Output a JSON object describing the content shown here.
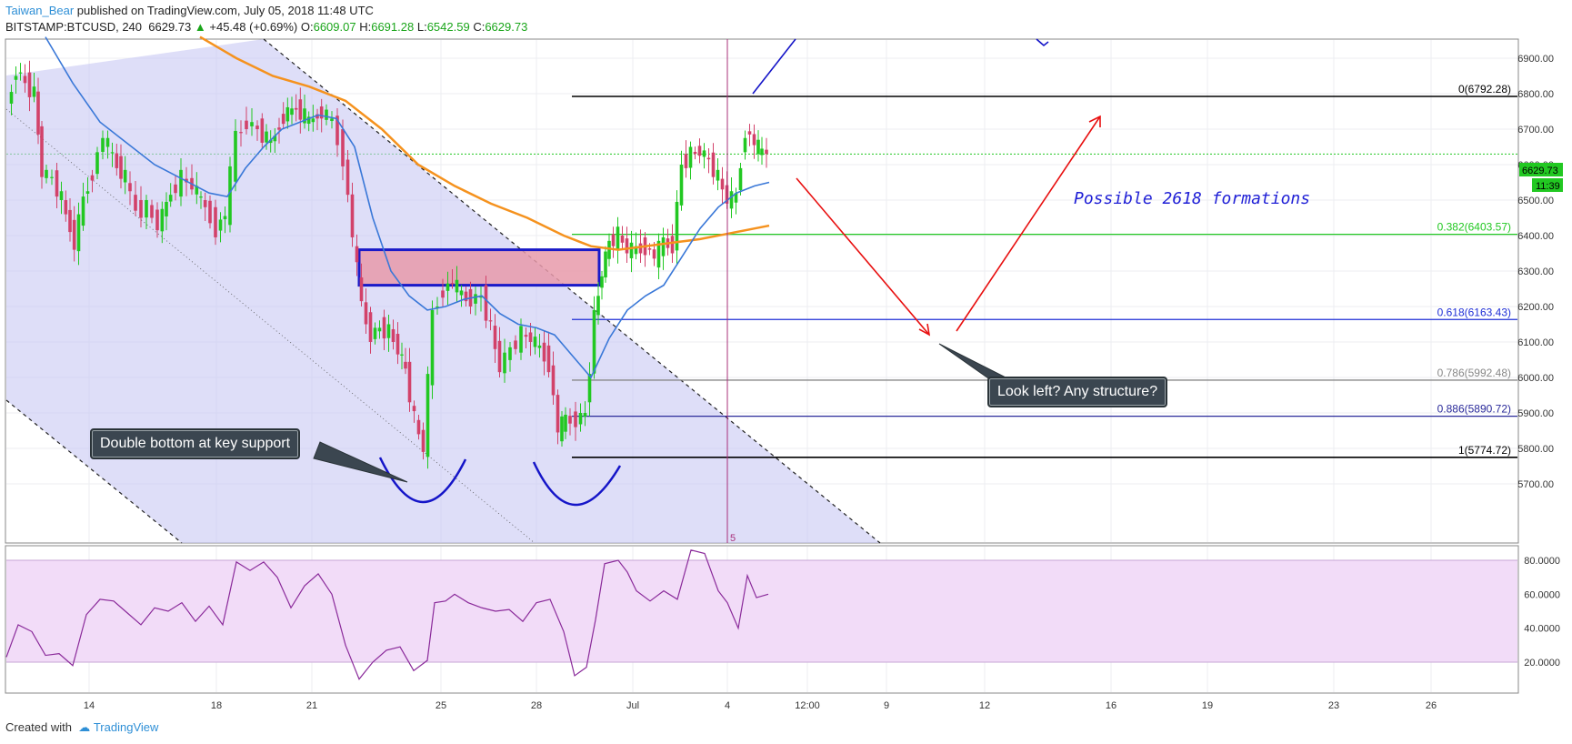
{
  "header": {
    "author": "Taiwan_Bear",
    "published": " published on TradingView.com, July 05, 2018 11:48 UTC",
    "symbol": "BITSTAMP:BTCUSD, 240",
    "last": "6629.73",
    "change": "+45.48 (+0.69%)",
    "o_label": "O:",
    "o": "6609.07",
    "h_label": "H:",
    "h": "6691.28",
    "l_label": "L:",
    "l": "6542.59",
    "c_label": "C:",
    "c": "6629.73"
  },
  "footer": {
    "created": "Created with",
    "brand": "TradingView"
  },
  "annotations": {
    "formations": "Possible 2618 formations",
    "double_bottom": "Double bottom at key support",
    "look_left": "Look left? Any structure?"
  },
  "chart_data": {
    "type": "candlestick",
    "timeframe": "240",
    "price_axis": {
      "range": [
        5680,
        6960
      ],
      "ticks": [
        "6900.00",
        "6800.00",
        "6700.00",
        "6600.00",
        "6500.00",
        "6400.00",
        "6300.00",
        "6200.00",
        "6100.00",
        "6000.00",
        "5900.00",
        "5800.00",
        "5700.00"
      ],
      "last_price_label": "6629.73",
      "countdown_label": "11:39"
    },
    "x_ticks": [
      "14",
      "18",
      "21",
      "25",
      "28",
      "Jul",
      "4",
      "12:00",
      "9",
      "12",
      "16",
      "19",
      "23",
      "26"
    ],
    "fib_levels": [
      {
        "ratio": "0",
        "price": 6792.28,
        "label": "0(6792.28)",
        "color": "#000000"
      },
      {
        "ratio": "0.382",
        "price": 6403.57,
        "label": "0.382(6403.57)",
        "color": "#22c822"
      },
      {
        "ratio": "0.618",
        "price": 6163.43,
        "label": "0.618(6163.43)",
        "color": "#1f2fd6"
      },
      {
        "ratio": "0.786",
        "price": 5992.48,
        "label": "0.786(5992.48)",
        "color": "#888888"
      },
      {
        "ratio": "0.886",
        "price": 5890.72,
        "label": "0.886(5890.72)",
        "color": "#2a2a9a"
      },
      {
        "ratio": "1",
        "price": 5774.72,
        "label": "1(5774.72)",
        "color": "#000000"
      }
    ],
    "resistance_zone": {
      "price_low": 6260,
      "price_high": 6360
    },
    "vertical_marker_label": "5",
    "oscillator": {
      "ticks": [
        "80.0000",
        "60.0000",
        "40.0000",
        "20.0000"
      ],
      "range": [
        5,
        90
      ],
      "band": [
        20,
        80
      ]
    },
    "colors": {
      "up": "#22c822",
      "down": "#d2426a",
      "ma_fast": "#3a78d8",
      "ma_slow": "#f5921e",
      "channel": "#c8c8f4",
      "rsi": "#8a2a9a",
      "rsi_band": "#f2dcf8"
    }
  }
}
